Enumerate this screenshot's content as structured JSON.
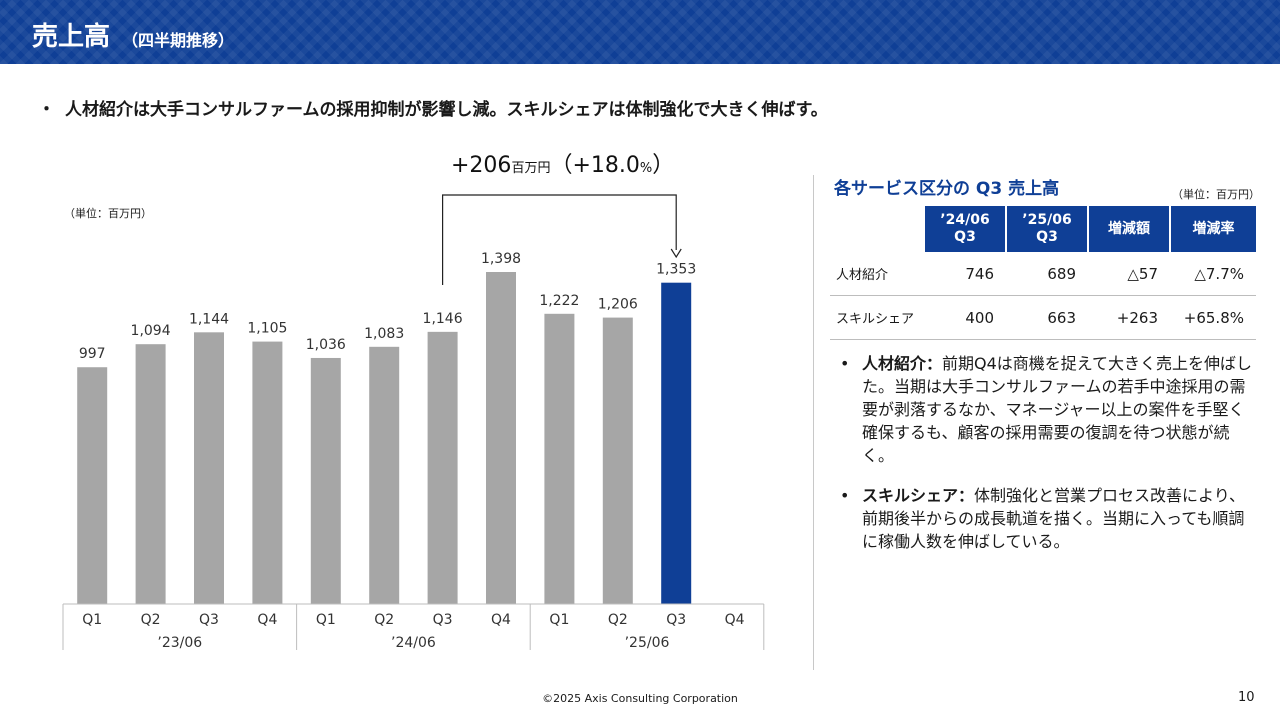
{
  "header": {
    "title": "売上高",
    "subtitle": "（四半期推移）"
  },
  "summary_bullet": "人材紹介は大手コンサルファームの採用抑制が影響し減。スキルシェアは体制強化で大きく伸ばす。",
  "chart_data": {
    "type": "bar",
    "unit_label": "（単位：百万円）",
    "categories": [
      "Q1",
      "Q2",
      "Q3",
      "Q4",
      "Q1",
      "Q2",
      "Q3",
      "Q4",
      "Q1",
      "Q2",
      "Q3",
      "Q4"
    ],
    "groups": [
      {
        "label": "’23/06",
        "quarters": [
          "Q1",
          "Q2",
          "Q3",
          "Q4"
        ]
      },
      {
        "label": "’24/06",
        "quarters": [
          "Q1",
          "Q2",
          "Q3",
          "Q4"
        ]
      },
      {
        "label": "’25/06",
        "quarters": [
          "Q1",
          "Q2",
          "Q3",
          "Q4"
        ]
      }
    ],
    "values": [
      997,
      1094,
      1144,
      1105,
      1036,
      1083,
      1146,
      1398,
      1222,
      1206,
      1353,
      null
    ],
    "value_labels": [
      "997",
      "1,094",
      "1,144",
      "1,105",
      "1,036",
      "1,083",
      "1,146",
      "1,398",
      "1,222",
      "1,206",
      "1,353",
      ""
    ],
    "highlight_index": 10,
    "colors": {
      "bar": "#a6a6a6",
      "highlight": "#0f3f96"
    },
    "ylim": [
      0,
      1550
    ],
    "annotation": {
      "from_index": 6,
      "to_index": 10,
      "main": "+206",
      "unit": "百万円",
      "pct_open": "（+18.0",
      "pct_unit": "%",
      "pct_close": "）"
    }
  },
  "service_table": {
    "title": "各サービス区分の Q3 売上高",
    "unit": "（単位：百万円）",
    "headers": [
      {
        "line1": "’24/06",
        "line2": "Q3"
      },
      {
        "line1": "’25/06",
        "line2": "Q3"
      },
      {
        "line1": "増減額",
        "line2": ""
      },
      {
        "line1": "増減率",
        "line2": ""
      }
    ],
    "rows": [
      {
        "name": "人材紹介",
        "c1": "746",
        "c2": "689",
        "c3": "△57",
        "c4": "△7.7%"
      },
      {
        "name": "スキルシェア",
        "c1": "400",
        "c2": "663",
        "c3": "+263",
        "c4": "+65.8%"
      }
    ]
  },
  "notes": [
    {
      "bullet": "•",
      "label": "人材紹介：",
      "text": "前期Q4は商機を捉えて大きく売上を伸ばした。当期は大手コンサルファームの若手中途採用の需要が剥落するなか、マネージャー以上の案件を手堅く確保するも、顧客の採用需要の復調を待つ状態が続く。"
    },
    {
      "bullet": "•",
      "label": "スキルシェア：",
      "text": "体制強化と営業プロセス改善により、前期後半からの成長軌道を描く。当期に入っても順調に稼働人数を伸ばしている。"
    }
  ],
  "footer": "©2025 Axis Consulting Corporation",
  "page_number": "10"
}
